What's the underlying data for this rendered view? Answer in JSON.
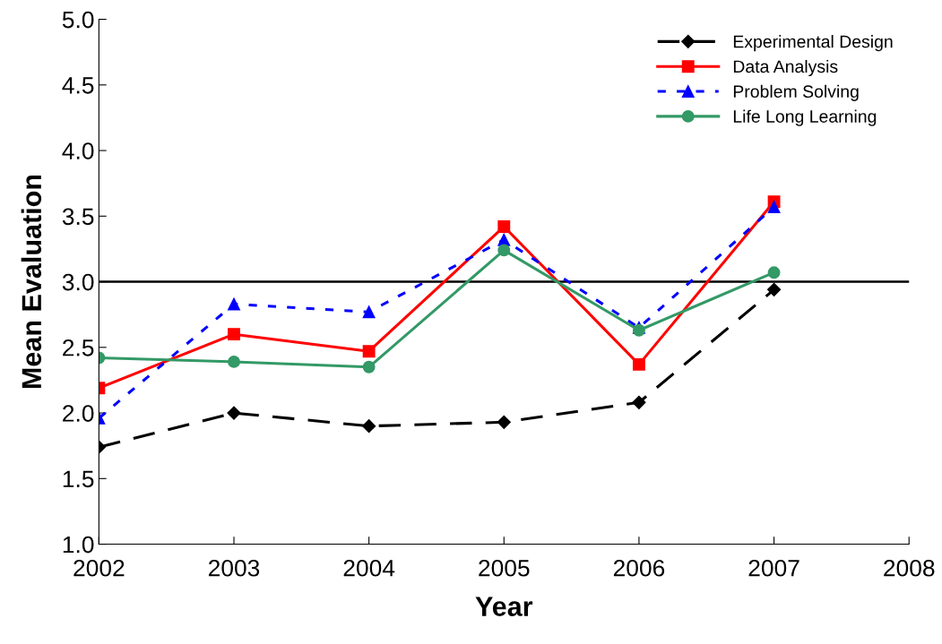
{
  "chart_data": {
    "type": "line",
    "xlabel": "Year",
    "ylabel": "Mean Evaluation",
    "x": [
      2002,
      2003,
      2004,
      2005,
      2006,
      2007
    ],
    "series": [
      {
        "name": "Experimental Design",
        "color": "#000000",
        "marker": "diamond",
        "line_style": "dashed",
        "values": [
          1.74,
          2.0,
          1.9,
          1.93,
          2.08,
          2.94
        ]
      },
      {
        "name": "Data Analysis",
        "color": "#ff0000",
        "marker": "square",
        "line_style": "solid",
        "values": [
          2.19,
          2.6,
          2.47,
          3.42,
          2.37,
          3.61
        ]
      },
      {
        "name": "Problem Solving",
        "color": "#0000ff",
        "marker": "triangle",
        "line_style": "dotted",
        "values": [
          1.96,
          2.83,
          2.77,
          3.32,
          2.65,
          3.57
        ]
      },
      {
        "name": "Life Long Learning",
        "color": "#339966",
        "marker": "circle",
        "line_style": "solid",
        "values": [
          2.42,
          2.39,
          2.35,
          3.24,
          2.63,
          3.07
        ]
      }
    ],
    "xlim": [
      2002,
      2008
    ],
    "xticks": [
      2002,
      2003,
      2004,
      2005,
      2006,
      2007,
      2008
    ],
    "ylim": [
      1.0,
      5.0
    ],
    "yticks": [
      {
        "value": 1.0,
        "label": "1.0"
      },
      {
        "value": 1.5,
        "label": "1.5"
      },
      {
        "value": 2.0,
        "label": "2.0"
      },
      {
        "value": 2.5,
        "label": "2.5"
      },
      {
        "value": 3.0,
        "label": "3.0"
      },
      {
        "value": 3.5,
        "label": "3.5"
      },
      {
        "value": 4.0,
        "label": "4.0"
      },
      {
        "value": 4.5,
        "label": "4.5"
      },
      {
        "value": 5.0,
        "label": "5.0"
      }
    ],
    "ref_lines": [
      {
        "axis": "y",
        "value": 3.0,
        "color": "#000000",
        "line_style": "solid"
      }
    ],
    "grid": false,
    "legend": "top right"
  }
}
